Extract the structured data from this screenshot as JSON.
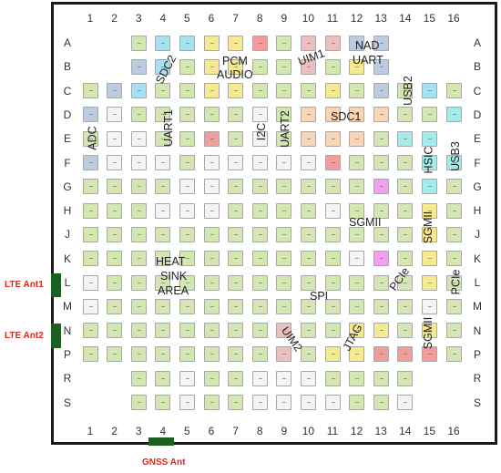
{
  "columns": [
    "1",
    "2",
    "3",
    "4",
    "5",
    "6",
    "7",
    "8",
    "9",
    "10",
    "11",
    "12",
    "13",
    "14",
    "15",
    "16"
  ],
  "rows": [
    "A",
    "B",
    "C",
    "D",
    "E",
    "F",
    "G",
    "H",
    "J",
    "K",
    "L",
    "M",
    "N",
    "P",
    "R",
    "S"
  ],
  "colors": {
    "g": "#d4e7b3",
    "w": "#f4f4f4",
    "b": "#bdcbe0",
    "c": "#a7dff3",
    "y": "#f5e992",
    "r": "#f29d9c",
    "p": "#e9c0bf",
    "o": "#f7d5b5",
    "t": "#a3ecec",
    "m": "#f39ef0",
    "antenna_text": "#e0261e",
    "antenna_bar": "#1a5e20"
  },
  "pin_grid": [
    "..gccyyrgppbb...",
    "..bcgyyggpgyb...",
    "gbcggyygggygbgcg",
    "bwgggggwgooooggt",
    "gwwggrgwgooogtt.",
    "bwwwgwwwwwrgggtt",
    "ggggwwggggggmgtg",
    "gggwwwggggwgggyg",
    "ggggggggggggggyg",
    "gggggggggggwmgyg",
    "wgggggggggggggyg",
    "wgggggggggggggwg",
    "ggggggggpggyygyg",
    "ggggggggpgyyrrrg",
    "..ggwggwwwgggg..",
    "..ggwggwwwwggw.."
  ],
  "interface_labels": [
    {
      "id": "sdc2",
      "text": "SDC2"
    },
    {
      "id": "pcm",
      "text": "PCM"
    },
    {
      "id": "audio",
      "text": "AUDIO"
    },
    {
      "id": "uim1",
      "text": "UIM1"
    },
    {
      "id": "nad",
      "text": "NAD"
    },
    {
      "id": "uart-nad",
      "text": "UART"
    },
    {
      "id": "usb2",
      "text": "USB2"
    },
    {
      "id": "uart1",
      "text": "UART1"
    },
    {
      "id": "adc",
      "text": "ADC"
    },
    {
      "id": "i2c",
      "text": "I2C"
    },
    {
      "id": "uart2",
      "text": "UART2"
    },
    {
      "id": "sdc1",
      "text": "SDC1"
    },
    {
      "id": "hsic",
      "text": "HSIC"
    },
    {
      "id": "usb3",
      "text": "USB3"
    },
    {
      "id": "sgmii-1",
      "text": "SGMII"
    },
    {
      "id": "sgmii-2",
      "text": "SGMII"
    },
    {
      "id": "heat",
      "text": "HEAT"
    },
    {
      "id": "sink",
      "text": "SINK"
    },
    {
      "id": "area",
      "text": "AREA"
    },
    {
      "id": "pcie-1",
      "text": "PCIe"
    },
    {
      "id": "pcie-2",
      "text": "PCIe"
    },
    {
      "id": "spi",
      "text": "SPI"
    },
    {
      "id": "uim2",
      "text": "UIM2"
    },
    {
      "id": "jtag",
      "text": "JTAG"
    },
    {
      "id": "sgmii-3",
      "text": "SGMII"
    }
  ],
  "antennas": [
    {
      "id": "lte-ant1",
      "text": "LTE Ant1"
    },
    {
      "id": "lte-ant2",
      "text": "LTE Ant2"
    },
    {
      "id": "gnss-ant",
      "text": "GNSS Ant"
    }
  ]
}
